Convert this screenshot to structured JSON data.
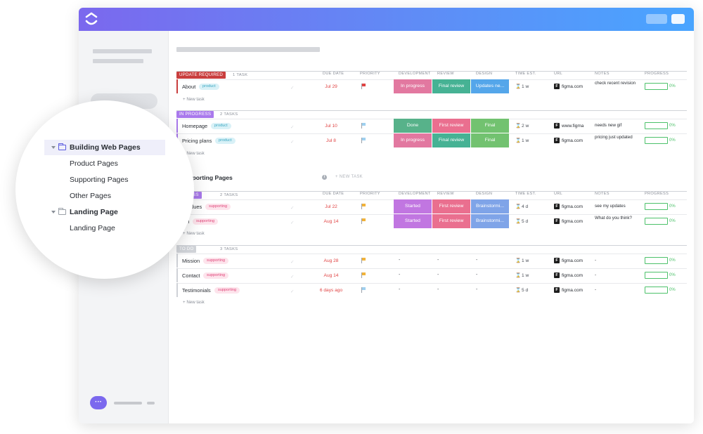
{
  "colors": {
    "accent": "#7b68ee",
    "update_required": "#c93e3e",
    "in_progress": "#a979ec",
    "to_do": "#cfd2d7",
    "status_in_progress": "#e278a0",
    "status_final_review": "#46b294",
    "status_updates": "#54a6ea",
    "status_done": "#57b28a",
    "status_first_review": "#ea6f8f",
    "status_final": "#72c270",
    "status_started": "#c176e1",
    "status_brainstorm": "#7fa4e8",
    "progress": "#4cc16a"
  },
  "columns": {
    "due_date": "DUE DATE",
    "priority": "PRIORITY",
    "development": "DEVELOPMENT",
    "review": "REVIEW",
    "design": "DESIGN",
    "time_est": "TIME EST.",
    "url": "URL",
    "notes": "NOTES",
    "progress": "PROGRESS"
  },
  "new_task": "+ New task",
  "groups": [
    {
      "status": "UPDATE REQUIRED",
      "count": "1 TASK",
      "tasks": [
        {
          "name": "About",
          "tag": "product",
          "due": "Jul 29",
          "dev": "In progress",
          "review": "Final review",
          "design": "Updates ne...",
          "est": "1 w",
          "url": "figma.com",
          "note": "check recent revision",
          "pct": "0%"
        }
      ]
    },
    {
      "status": "IN PROGRESS",
      "count": "2 TASKS",
      "tasks": [
        {
          "name": "Homepage",
          "tag": "product",
          "due": "Jul 10",
          "dev": "Done",
          "review": "First review",
          "design": "Final",
          "est": "2 w",
          "url": "www.figma",
          "note": "needs new gif",
          "pct": "0%"
        },
        {
          "name": "Pricing plans",
          "tag": "product",
          "due": "Jul 8",
          "dev": "In progress",
          "review": "Final review",
          "design": "Final",
          "est": "1 w",
          "url": "figma.com",
          "note": "pricing just updated",
          "pct": "0%"
        }
      ]
    }
  ],
  "supporting": {
    "title": "upporting Pages",
    "info": "i",
    "new_task_upper": "+ NEW TASK",
    "groups": [
      {
        "status": "OGRESS",
        "count": "2 TASKS",
        "tasks": [
          {
            "name": "e Values",
            "tag": "supporting",
            "due": "Jul 22",
            "dev": "Started",
            "review": "First review",
            "design": "Brainstormi...",
            "est": "4 d",
            "url": "figma.com",
            "note": "see my updates",
            "pct": "0%"
          },
          {
            "name": "am",
            "tag": "supporting",
            "due": "Aug 14",
            "dev": "Started",
            "review": "First review",
            "design": "Brainstormi...",
            "est": "5 d",
            "url": "figma.com",
            "note": "What do you think?",
            "pct": "0%"
          }
        ]
      },
      {
        "status": "TO DO",
        "count": "3 TASKS",
        "tasks": [
          {
            "name": "Mission",
            "tag": "supporting",
            "due": "Aug 28",
            "dev": "-",
            "review": "-",
            "design": "-",
            "est": "1 w",
            "url": "figma.com",
            "note": "-",
            "pct": "0%"
          },
          {
            "name": "Contact",
            "tag": "supporting",
            "due": "Aug 14",
            "dev": "-",
            "review": "-",
            "design": "-",
            "est": "1 w",
            "url": "figma.com",
            "note": "-",
            "pct": "0%"
          },
          {
            "name": "Testimonials",
            "tag": "supporting",
            "due": "6 days ago",
            "dev": "-",
            "review": "-",
            "design": "-",
            "est": "5 d",
            "url": "figma.com",
            "note": "-",
            "pct": "0%"
          }
        ]
      }
    ]
  },
  "sidebar_tree": {
    "folder1": "Building Web Pages",
    "folder1_items": [
      "Product Pages",
      "Supporting Pages",
      "Other Pages"
    ],
    "folder2": "Landing Page",
    "folder2_items": [
      "Landing Page"
    ]
  },
  "chat_icon": "···",
  "figma_icon": "F",
  "hourglass_icon": "⌛"
}
